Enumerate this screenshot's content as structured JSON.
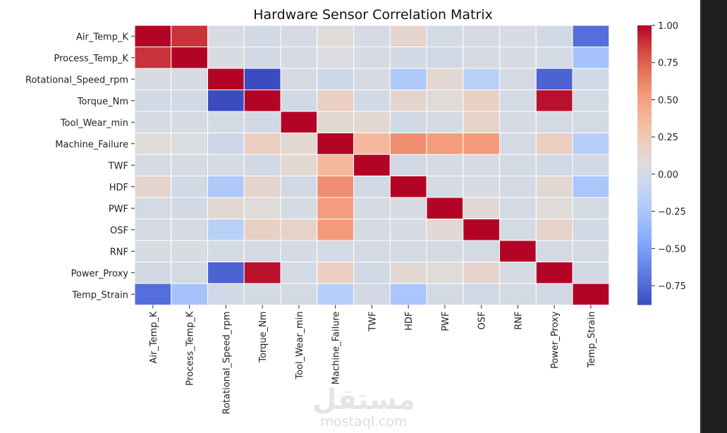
{
  "chart_data": {
    "type": "heatmap",
    "title": "Hardware Sensor Correlation Matrix",
    "labels": [
      "Air_Temp_K",
      "Process_Temp_K",
      "Rotational_Speed_rpm",
      "Torque_Nm",
      "Tool_Wear_min",
      "Machine_Failure",
      "TWF",
      "HDF",
      "PWF",
      "OSF",
      "RNF",
      "Power_Proxy",
      "Temp_Strain"
    ],
    "matrix": [
      [
        1.0,
        0.88,
        0.02,
        -0.01,
        0.01,
        0.08,
        0.01,
        0.14,
        0.0,
        0.01,
        0.02,
        -0.01,
        -0.73
      ],
      [
        0.88,
        1.0,
        0.02,
        -0.01,
        0.01,
        0.04,
        0.01,
        -0.01,
        -0.01,
        0.01,
        0.02,
        0.0,
        -0.28
      ],
      [
        0.02,
        0.02,
        1.0,
        -0.88,
        0.0,
        -0.04,
        0.01,
        -0.23,
        0.12,
        -0.16,
        0.0,
        -0.78,
        -0.02
      ],
      [
        -0.01,
        -0.01,
        -0.88,
        1.0,
        -0.01,
        0.19,
        -0.01,
        0.14,
        0.08,
        0.18,
        0.0,
        0.97,
        0.0
      ],
      [
        0.01,
        0.01,
        0.0,
        -0.01,
        1.0,
        0.11,
        0.12,
        -0.01,
        0.01,
        0.16,
        0.01,
        0.0,
        0.0
      ],
      [
        0.08,
        0.04,
        -0.04,
        0.19,
        0.11,
        1.0,
        0.36,
        0.58,
        0.52,
        0.53,
        0.0,
        0.19,
        -0.18
      ],
      [
        0.01,
        0.01,
        0.01,
        -0.01,
        0.12,
        0.36,
        1.0,
        -0.01,
        0.01,
        0.01,
        0.0,
        -0.01,
        -0.01
      ],
      [
        0.14,
        -0.01,
        -0.23,
        0.14,
        -0.01,
        0.58,
        -0.01,
        1.0,
        0.02,
        0.02,
        0.0,
        0.11,
        -0.25
      ],
      [
        0.0,
        -0.01,
        0.12,
        0.08,
        0.01,
        0.52,
        0.01,
        0.02,
        1.0,
        0.1,
        0.0,
        0.08,
        0.0
      ],
      [
        0.01,
        0.01,
        -0.16,
        0.18,
        0.16,
        0.53,
        0.01,
        0.02,
        0.1,
        1.0,
        0.0,
        0.15,
        -0.01
      ],
      [
        0.02,
        0.02,
        0.0,
        0.0,
        0.01,
        0.0,
        0.0,
        0.0,
        0.0,
        0.0,
        1.0,
        0.0,
        0.0
      ],
      [
        -0.01,
        0.0,
        -0.78,
        0.97,
        0.0,
        0.19,
        -0.01,
        0.11,
        0.08,
        0.15,
        0.0,
        1.0,
        -0.01
      ],
      [
        -0.73,
        -0.28,
        -0.02,
        0.0,
        0.0,
        -0.18,
        -0.01,
        -0.25,
        0.0,
        -0.01,
        0.0,
        -0.01,
        1.0
      ]
    ],
    "colormap": "coolwarm",
    "vmin": -0.88,
    "vmax": 1.0,
    "colorbar_ticks": [
      "1.00",
      "0.75",
      "0.50",
      "0.25",
      "0.00",
      "−0.25",
      "−0.50",
      "−0.75"
    ],
    "colorbar_tick_values": [
      1.0,
      0.75,
      0.5,
      0.25,
      0.0,
      -0.25,
      -0.5,
      -0.75
    ],
    "grid": true,
    "legend": "right colorbar"
  },
  "watermark": {
    "arabic": "مستقل",
    "latin": "mostaql.com"
  }
}
